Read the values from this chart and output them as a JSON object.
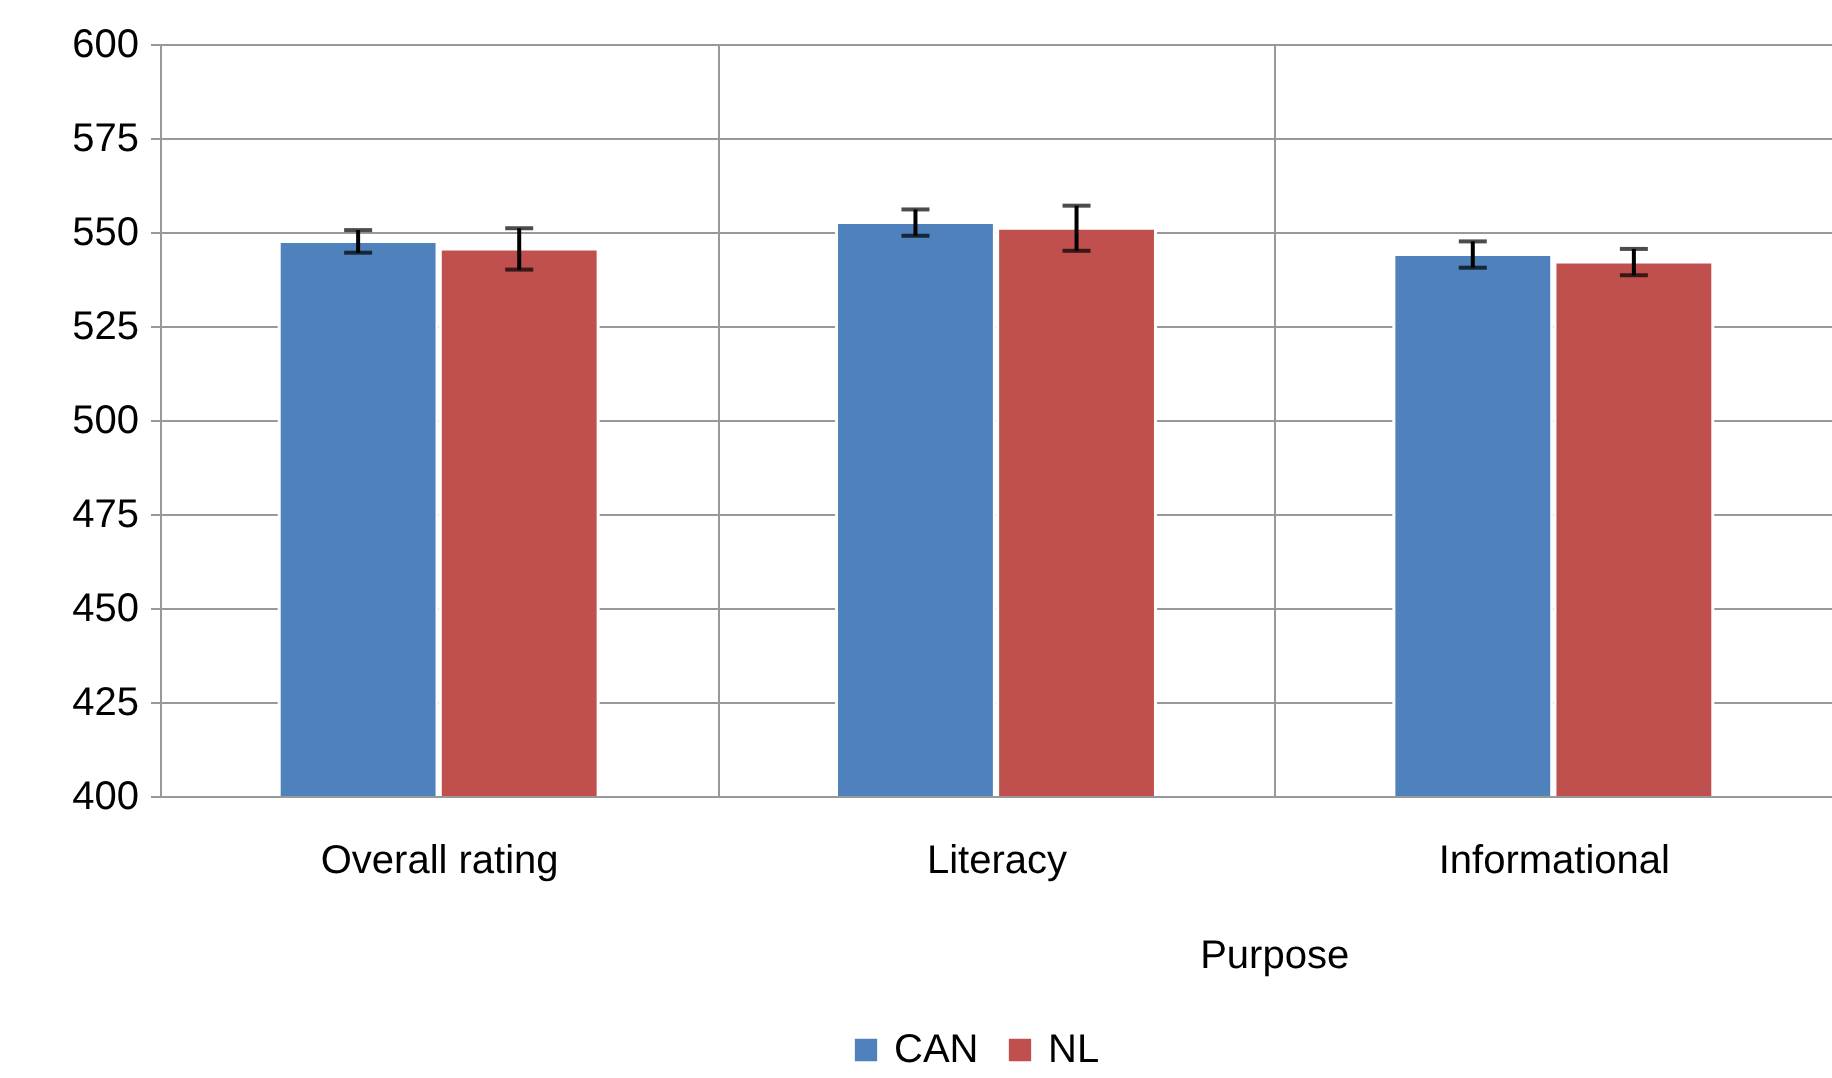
{
  "chart_data": {
    "type": "bar",
    "categories": [
      "Overall rating",
      "Literacy",
      "Informational"
    ],
    "series": [
      {
        "name": "CAN",
        "color": "#4f81bd",
        "values": [
          547.5,
          552.5,
          544
        ],
        "errors": [
          3,
          3.5,
          3.5
        ]
      },
      {
        "name": "NL",
        "color": "#c0504d",
        "values": [
          545.5,
          551,
          542
        ],
        "errors": [
          5.5,
          6,
          3.5
        ]
      }
    ],
    "annotations": [
      "Purpose"
    ],
    "ylim": [
      400,
      600
    ],
    "yticks": [
      400,
      425,
      450,
      475,
      500,
      525,
      550,
      575,
      600
    ],
    "grid": true,
    "legend": "bottom"
  }
}
